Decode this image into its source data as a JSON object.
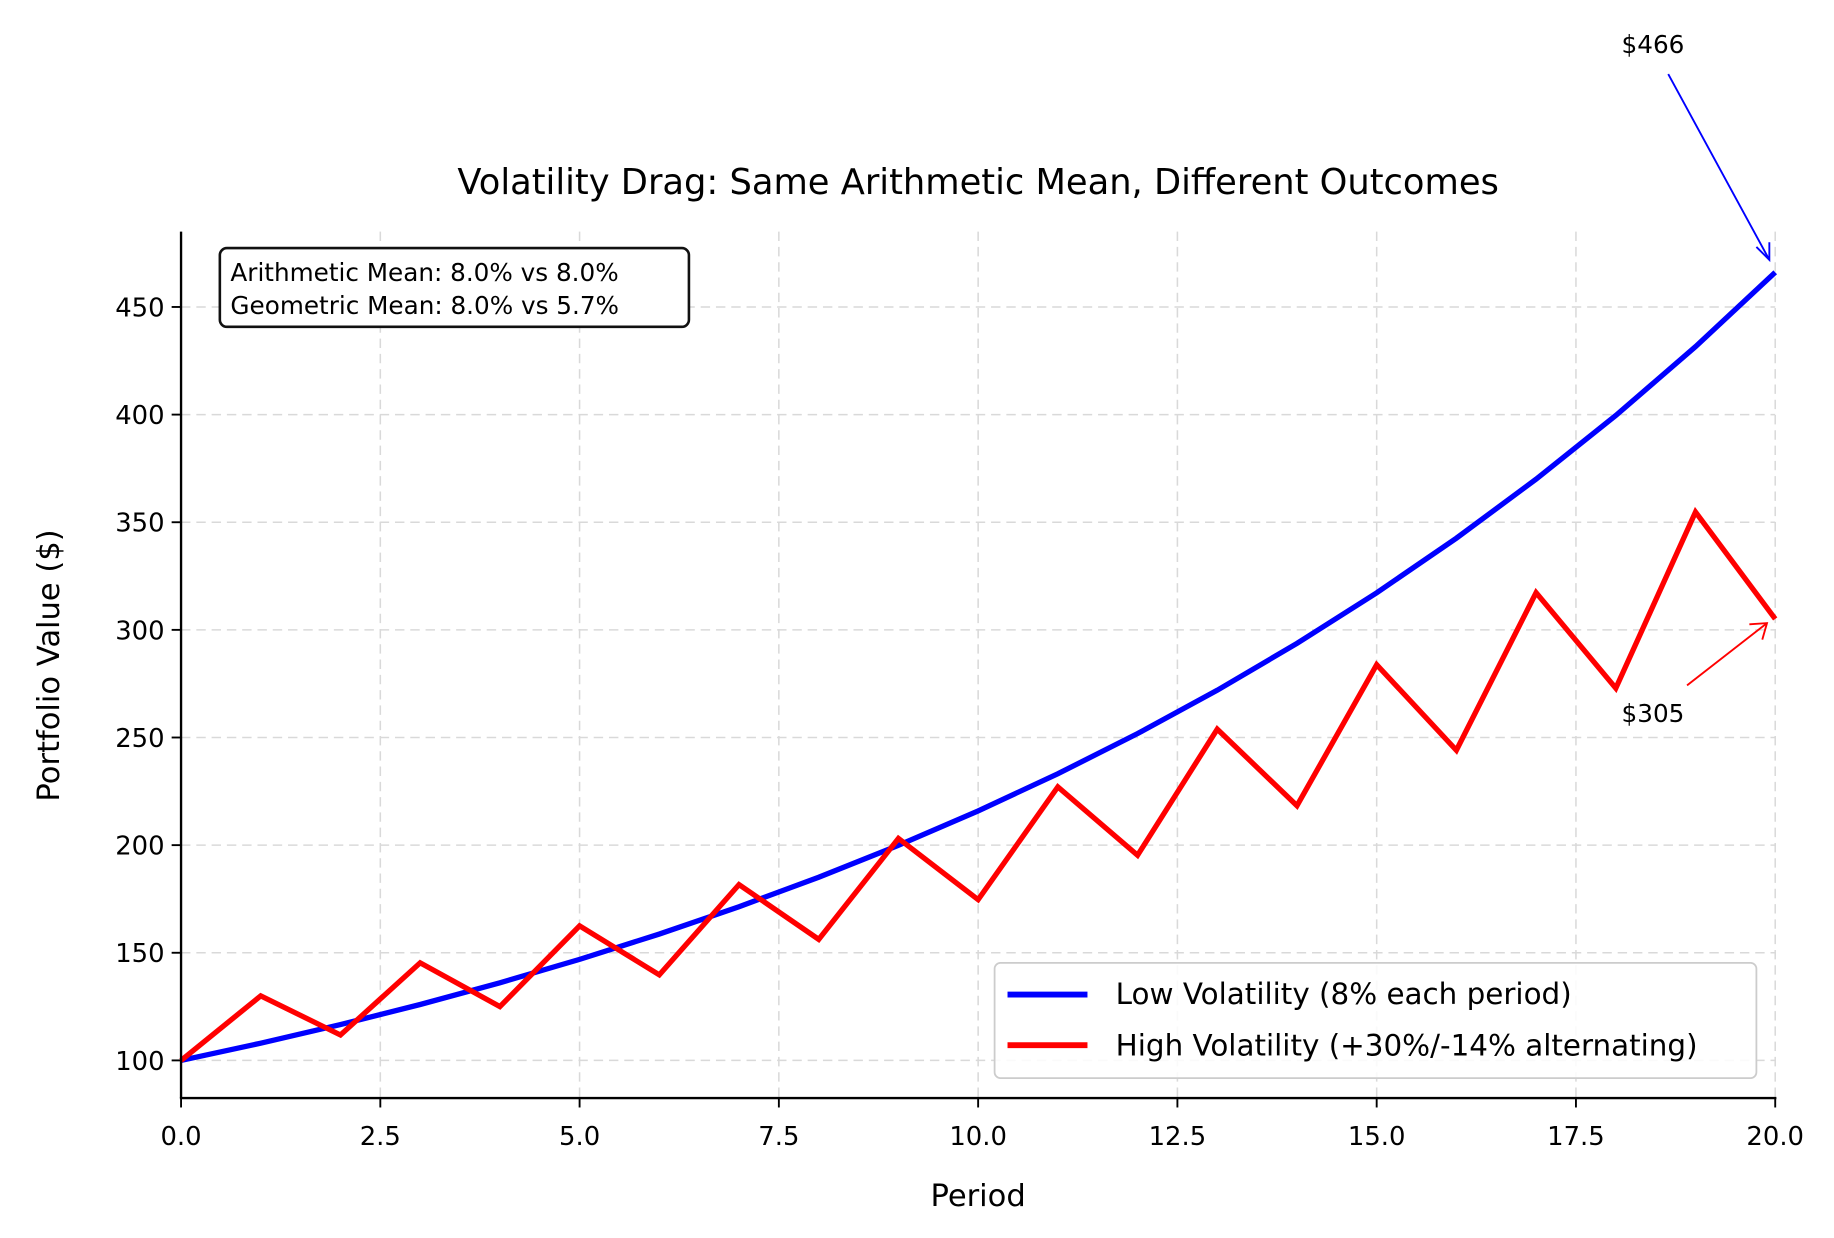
{
  "chart_data": {
    "type": "line",
    "title": "Volatility Drag: Same Arithmetic Mean, Different Outcomes",
    "xlabel": "Period",
    "ylabel": "Portfolio Value ($)",
    "xlim": [
      0,
      20
    ],
    "ylim": [
      82.5,
      485
    ],
    "grid": true,
    "legend_position": "lower-right",
    "x_ticks": [
      "0.0",
      "2.5",
      "5.0",
      "7.5",
      "10.0",
      "12.5",
      "15.0",
      "17.5",
      "20.0"
    ],
    "y_ticks": [
      "100",
      "150",
      "200",
      "250",
      "300",
      "350",
      "400",
      "450"
    ],
    "x": [
      0,
      1,
      2,
      3,
      4,
      5,
      6,
      7,
      8,
      9,
      10,
      11,
      12,
      13,
      14,
      15,
      16,
      17,
      18,
      19,
      20
    ],
    "series": [
      {
        "name": "Low Volatility (8% each period)",
        "color": "#0000ff",
        "values": [
          100,
          108,
          116.64,
          125.97,
          136.05,
          146.93,
          158.69,
          171.38,
          185.09,
          199.9,
          215.89,
          233.16,
          251.82,
          271.96,
          293.72,
          317.22,
          342.59,
          370.0,
          399.6,
          431.57,
          466.1
        ]
      },
      {
        "name": "High Volatility (+30%/-14% alternating)",
        "color": "#ff0000",
        "values": [
          100,
          130,
          111.8,
          145.34,
          124.99,
          162.49,
          139.74,
          181.67,
          156.23,
          203.1,
          174.67,
          227.07,
          195.28,
          253.86,
          218.32,
          283.81,
          244.08,
          317.3,
          272.88,
          354.74,
          305.08
        ]
      }
    ],
    "annotations": [
      {
        "text": "$466",
        "x": 20,
        "y": 466.1,
        "color": "#0000ff"
      },
      {
        "text": "$305",
        "x": 20,
        "y": 305.08,
        "color": "#ff0000"
      }
    ],
    "stats_box": [
      "Arithmetic Mean: 8.0% vs 8.0%",
      "Geometric Mean: 8.0% vs 5.7%"
    ]
  }
}
